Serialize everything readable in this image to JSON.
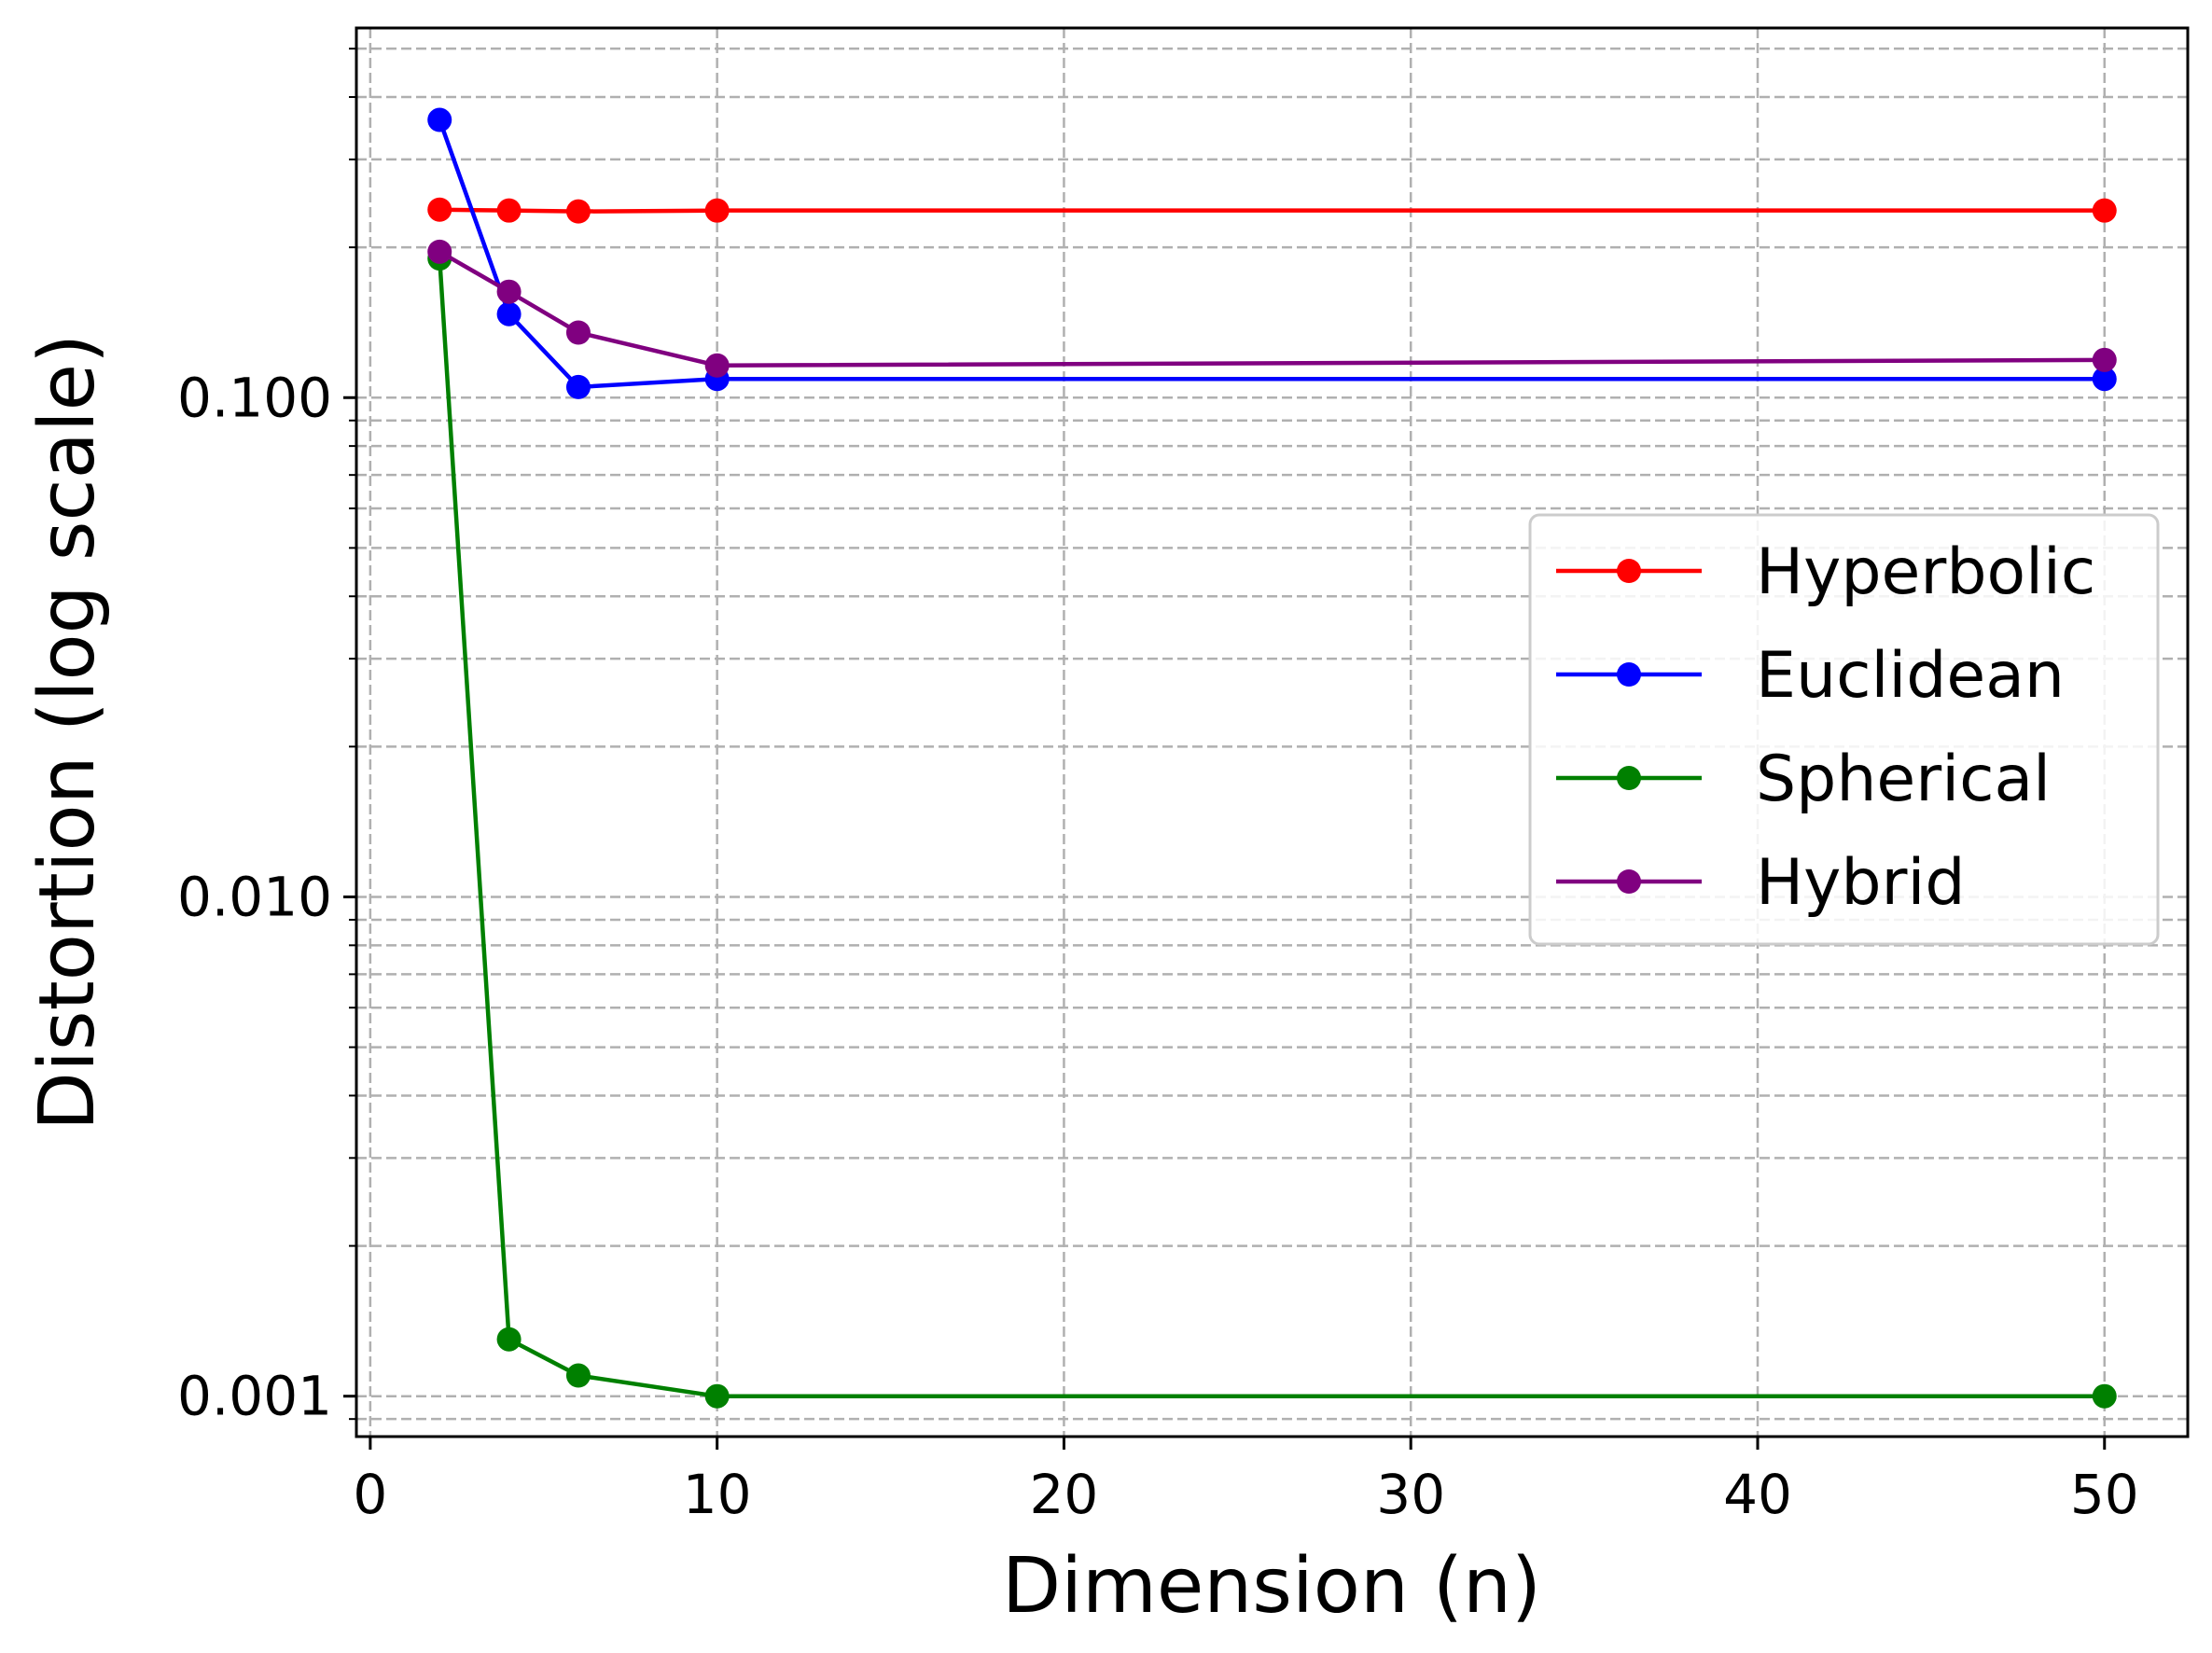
{
  "chart_data": {
    "type": "line",
    "title": "",
    "xlabel": "Dimension (n)",
    "ylabel": "Distortion (log scale)",
    "yscale": "log",
    "xlim": [
      -0.4,
      52.4
    ],
    "ylim": [
      0.00083,
      0.55
    ],
    "grid": true,
    "grid_minor": true,
    "legend_position": "center-right",
    "x_ticks": [
      0,
      10,
      20,
      30,
      40,
      50
    ],
    "x_tick_labels": [
      "0",
      "10",
      "20",
      "30",
      "40",
      "50"
    ],
    "y_ticks": [
      0.001,
      0.01,
      0.1
    ],
    "y_tick_labels": [
      "0.001",
      "0.010",
      "0.100"
    ],
    "series": [
      {
        "name": "Hyperbolic",
        "color": "#ff0000",
        "x": [
          2,
          4,
          6,
          10,
          50
        ],
        "values": [
          0.238,
          0.237,
          0.236,
          0.237,
          0.237
        ]
      },
      {
        "name": "Euclidean",
        "color": "#0000ff",
        "x": [
          2,
          4,
          6,
          10,
          50
        ],
        "values": [
          0.36,
          0.147,
          0.105,
          0.109,
          0.109
        ]
      },
      {
        "name": "Spherical",
        "color": "#008000",
        "x": [
          2,
          4,
          6,
          10,
          50
        ],
        "values": [
          0.19,
          0.0013,
          0.0011,
          0.001,
          0.001
        ]
      },
      {
        "name": "Hybrid",
        "color": "#800080",
        "x": [
          2,
          4,
          6,
          10,
          50
        ],
        "values": [
          0.196,
          0.163,
          0.135,
          0.116,
          0.119
        ]
      }
    ]
  }
}
